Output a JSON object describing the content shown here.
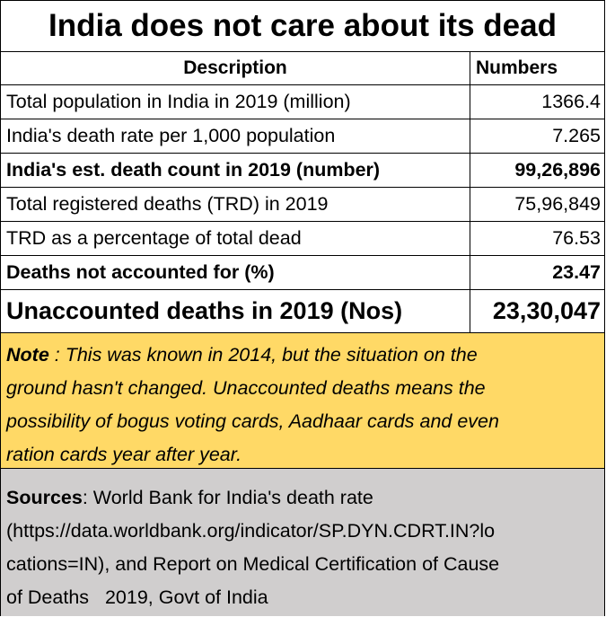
{
  "title": "India does not care about its dead",
  "table": {
    "headers": {
      "description": "Description",
      "numbers": "Numbers"
    },
    "rows": [
      {
        "description": "Total population in India in 2019 (million)",
        "number": "1366.4"
      },
      {
        "description": "India's death rate per 1,000 population",
        "number": "7.265"
      },
      {
        "description": "India's est. death count in 2019 (number)",
        "number": "99,26,896"
      },
      {
        "description": "Total registered deaths (TRD) in 2019",
        "number": "75,96,849"
      },
      {
        "description": "TRD as a percentage of total dead",
        "number": "76.53"
      },
      {
        "description": "Deaths not accounted for (%)",
        "number": "23.47"
      },
      {
        "description": "Unaccounted deaths in 2019 (Nos)",
        "number": "23,30,047"
      }
    ]
  },
  "note": {
    "label": "Note",
    "lines": [
      " : This was known in 2014, but the situation on the",
      "ground hasn't changed.  Unaccounted deaths means the",
      "possibility of bogus voting cards, Aadhaar cards and even",
      "ration cards year after year."
    ]
  },
  "sources": {
    "label": "Sources",
    "lines": [
      ": World Bank for India's death rate",
      "(https://data.worldbank.org/indicator/SP.DYN.CDRT.IN?lo",
      "cations=IN), and Report on Medical Certification of Cause",
      "of Deaths   2019, Govt of India"
    ]
  },
  "colors": {
    "note_background": "#ffd966",
    "sources_background": "#d0cece"
  }
}
